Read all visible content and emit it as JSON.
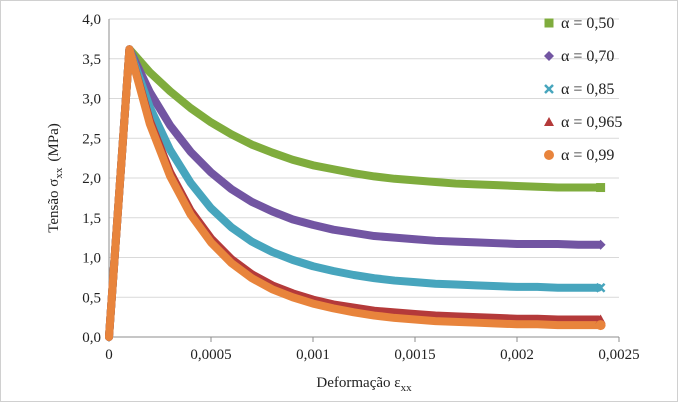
{
  "chart_data": {
    "type": "line",
    "xlabel": "Deformação εxx",
    "xlabel_main": "Deformação ε",
    "xlabel_sub": "xx",
    "ylabel": "Tensão σxx (MPa)",
    "ylabel_main": "Tensão σ",
    "ylabel_sub": "xx",
    "ylabel_unit": "(MPa)",
    "xlim": [
      0,
      0.0025
    ],
    "ylim": [
      0,
      4.0
    ],
    "x_ticks": [
      0,
      0.0005,
      0.001,
      0.0015,
      0.002,
      0.0025
    ],
    "x_tick_labels": [
      "0",
      "0,0005",
      "0,001",
      "0,0015",
      "0,002",
      "0,0025"
    ],
    "y_ticks": [
      0,
      0.5,
      1.0,
      1.5,
      2.0,
      2.5,
      3.0,
      3.5,
      4.0
    ],
    "y_tick_labels": [
      "0,0",
      "0,5",
      "1,0",
      "1,5",
      "2,0",
      "2,5",
      "3,0",
      "3,5",
      "4,0"
    ],
    "grid": "horizontal",
    "legend_position": "right",
    "peak": {
      "x": 0.0001,
      "y": 3.62
    },
    "series": [
      {
        "name": "α = 0,50",
        "color": "#7fac3d",
        "marker": "square",
        "points": [
          [
            0,
            0
          ],
          [
            0.0001,
            3.62
          ],
          [
            0.0002,
            3.33
          ],
          [
            0.0003,
            3.09
          ],
          [
            0.0004,
            2.88
          ],
          [
            0.0005,
            2.7
          ],
          [
            0.0006,
            2.55
          ],
          [
            0.0007,
            2.42
          ],
          [
            0.0008,
            2.32
          ],
          [
            0.0009,
            2.23
          ],
          [
            0.001,
            2.16
          ],
          [
            0.0011,
            2.11
          ],
          [
            0.0012,
            2.06
          ],
          [
            0.0013,
            2.02
          ],
          [
            0.0014,
            1.99
          ],
          [
            0.0015,
            1.97
          ],
          [
            0.0016,
            1.95
          ],
          [
            0.0017,
            1.93
          ],
          [
            0.0018,
            1.92
          ],
          [
            0.0019,
            1.91
          ],
          [
            0.002,
            1.9
          ],
          [
            0.0021,
            1.89
          ],
          [
            0.0022,
            1.88
          ],
          [
            0.0023,
            1.88
          ],
          [
            0.0024,
            1.88
          ]
        ]
      },
      {
        "name": "α = 0,70",
        "color": "#7255a2",
        "marker": "diamond",
        "points": [
          [
            0,
            0
          ],
          [
            0.0001,
            3.62
          ],
          [
            0.0002,
            3.08
          ],
          [
            0.0003,
            2.66
          ],
          [
            0.0004,
            2.33
          ],
          [
            0.0005,
            2.07
          ],
          [
            0.0006,
            1.86
          ],
          [
            0.0007,
            1.7
          ],
          [
            0.0008,
            1.58
          ],
          [
            0.0009,
            1.48
          ],
          [
            0.001,
            1.41
          ],
          [
            0.0011,
            1.35
          ],
          [
            0.0012,
            1.31
          ],
          [
            0.0013,
            1.27
          ],
          [
            0.0014,
            1.25
          ],
          [
            0.0015,
            1.23
          ],
          [
            0.0016,
            1.21
          ],
          [
            0.0017,
            1.2
          ],
          [
            0.0018,
            1.19
          ],
          [
            0.0019,
            1.18
          ],
          [
            0.002,
            1.17
          ],
          [
            0.0021,
            1.17
          ],
          [
            0.0022,
            1.17
          ],
          [
            0.0023,
            1.16
          ],
          [
            0.0024,
            1.16
          ]
        ]
      },
      {
        "name": "α = 0,85",
        "color": "#47a5bd",
        "marker": "x",
        "points": [
          [
            0,
            0
          ],
          [
            0.0001,
            3.62
          ],
          [
            0.0002,
            2.89
          ],
          [
            0.0003,
            2.35
          ],
          [
            0.0004,
            1.94
          ],
          [
            0.0005,
            1.62
          ],
          [
            0.0006,
            1.38
          ],
          [
            0.0007,
            1.2
          ],
          [
            0.0008,
            1.07
          ],
          [
            0.0009,
            0.97
          ],
          [
            0.001,
            0.89
          ],
          [
            0.0011,
            0.83
          ],
          [
            0.0012,
            0.78
          ],
          [
            0.0013,
            0.74
          ],
          [
            0.0014,
            0.71
          ],
          [
            0.0015,
            0.69
          ],
          [
            0.0016,
            0.67
          ],
          [
            0.0017,
            0.66
          ],
          [
            0.0018,
            0.65
          ],
          [
            0.0019,
            0.64
          ],
          [
            0.002,
            0.63
          ],
          [
            0.0021,
            0.63
          ],
          [
            0.0022,
            0.62
          ],
          [
            0.0023,
            0.62
          ],
          [
            0.0024,
            0.62
          ]
        ]
      },
      {
        "name": "α = 0,965",
        "color": "#b43a3a",
        "marker": "triangle",
        "points": [
          [
            0,
            0
          ],
          [
            0.0001,
            3.62
          ],
          [
            0.0002,
            2.72
          ],
          [
            0.0003,
            2.07
          ],
          [
            0.0004,
            1.59
          ],
          [
            0.0005,
            1.24
          ],
          [
            0.0006,
            0.98
          ],
          [
            0.0007,
            0.79
          ],
          [
            0.0008,
            0.65
          ],
          [
            0.0009,
            0.55
          ],
          [
            0.001,
            0.47
          ],
          [
            0.0011,
            0.41
          ],
          [
            0.0012,
            0.37
          ],
          [
            0.0013,
            0.33
          ],
          [
            0.0014,
            0.31
          ],
          [
            0.0015,
            0.29
          ],
          [
            0.0016,
            0.27
          ],
          [
            0.0017,
            0.26
          ],
          [
            0.0018,
            0.25
          ],
          [
            0.0019,
            0.24
          ],
          [
            0.002,
            0.23
          ],
          [
            0.0021,
            0.23
          ],
          [
            0.0022,
            0.22
          ],
          [
            0.0023,
            0.22
          ],
          [
            0.0024,
            0.22
          ]
        ]
      },
      {
        "name": "α = 0,99",
        "color": "#e8843c",
        "marker": "circle",
        "points": [
          [
            0,
            0
          ],
          [
            0.0001,
            3.62
          ],
          [
            0.0002,
            2.68
          ],
          [
            0.0003,
            2.02
          ],
          [
            0.0004,
            1.54
          ],
          [
            0.0005,
            1.19
          ],
          [
            0.0006,
            0.93
          ],
          [
            0.0007,
            0.74
          ],
          [
            0.0008,
            0.6
          ],
          [
            0.0009,
            0.5
          ],
          [
            0.001,
            0.42
          ],
          [
            0.0011,
            0.36
          ],
          [
            0.0012,
            0.31
          ],
          [
            0.0013,
            0.27
          ],
          [
            0.0014,
            0.24
          ],
          [
            0.0015,
            0.22
          ],
          [
            0.0016,
            0.2
          ],
          [
            0.0017,
            0.19
          ],
          [
            0.0018,
            0.18
          ],
          [
            0.0019,
            0.17
          ],
          [
            0.002,
            0.16
          ],
          [
            0.0021,
            0.16
          ],
          [
            0.0022,
            0.15
          ],
          [
            0.0023,
            0.15
          ],
          [
            0.0024,
            0.15
          ]
        ]
      }
    ]
  }
}
